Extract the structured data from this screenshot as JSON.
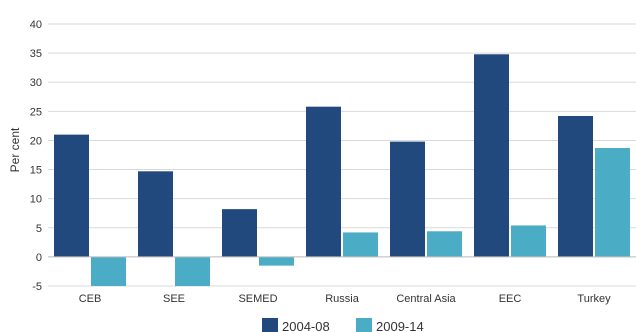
{
  "chart_data": {
    "type": "bar",
    "title": "",
    "xlabel": "",
    "ylabel": "Per cent",
    "ylim": [
      -5,
      40
    ],
    "yticks": [
      -5,
      0,
      5,
      10,
      15,
      20,
      25,
      30,
      35,
      40
    ],
    "grid": "horizontal",
    "legend": "bottom",
    "categories": [
      "CEB",
      "SEE",
      "SEMED",
      "Russia",
      "Central Asia",
      "EEC",
      "Turkey"
    ],
    "series": [
      {
        "name": "2004-08",
        "color": "#22497d",
        "values": [
          21.0,
          14.7,
          8.2,
          25.8,
          19.8,
          34.8,
          24.2
        ]
      },
      {
        "name": "2009-14",
        "color": "#4bacc6",
        "values": [
          -5.0,
          -5.0,
          -1.5,
          4.2,
          4.4,
          5.4,
          18.7
        ]
      }
    ]
  }
}
